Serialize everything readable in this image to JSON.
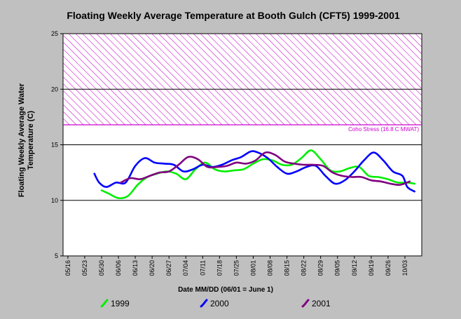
{
  "chart_data": {
    "type": "line",
    "title": "Floating Weekly Average Temperature at Booth Gulch (CFT5) 1999-2001",
    "xlabel": "Date MM/DD (06/01 = June 1)",
    "ylabel_line1": "Floating Weekly Average Water",
    "ylabel_line2": "Temperature (C)",
    "ylim": [
      5,
      25
    ],
    "yticks": [
      "5",
      "10",
      "15",
      "20",
      "25"
    ],
    "xticks": [
      "05/16",
      "05/23",
      "05/30",
      "06/06",
      "06/13",
      "06/20",
      "06/27",
      "07/04",
      "07/11",
      "07/18",
      "07/25",
      "08/01",
      "08/08",
      "08/15",
      "08/22",
      "08/29",
      "09/05",
      "09/12",
      "09/19",
      "09/26",
      "10/03"
    ],
    "grid": "horizontal at 10, 15, 20",
    "shaded_band": {
      "from": 16.8,
      "to": 25,
      "color": "#cc00cc",
      "label": "Coho Stress (16.8 C MWAT)"
    },
    "series": [
      {
        "name": "1999",
        "color": "#00ee00",
        "x": [
          "05/30",
          "06/02",
          "06/06",
          "06/10",
          "06/14",
          "06/18",
          "06/22",
          "06/26",
          "06/30",
          "07/04",
          "07/08",
          "07/12",
          "07/16",
          "07/20",
          "07/24",
          "07/28",
          "08/01",
          "08/05",
          "08/09",
          "08/13",
          "08/17",
          "08/21",
          "08/25",
          "08/29",
          "09/02",
          "09/06",
          "09/10",
          "09/14",
          "09/18",
          "09/22",
          "09/26",
          "09/30",
          "10/04",
          "10/07"
        ],
        "y": [
          10.9,
          10.6,
          10.2,
          10.4,
          11.4,
          12.1,
          12.4,
          12.6,
          12.4,
          11.9,
          12.8,
          13.4,
          12.8,
          12.6,
          12.7,
          12.8,
          13.3,
          13.7,
          13.6,
          13.2,
          13.2,
          13.8,
          14.5,
          13.7,
          12.7,
          12.6,
          12.9,
          13.0,
          12.2,
          12.1,
          11.9,
          11.6,
          11.6,
          11.5
        ]
      },
      {
        "name": "2000",
        "color": "#0000ff",
        "x": [
          "05/27",
          "05/29",
          "06/01",
          "06/05",
          "06/09",
          "06/13",
          "06/17",
          "06/21",
          "06/25",
          "06/29",
          "07/03",
          "07/07",
          "07/11",
          "07/15",
          "07/19",
          "07/23",
          "07/27",
          "07/31",
          "08/03",
          "08/07",
          "08/11",
          "08/15",
          "08/19",
          "08/23",
          "08/27",
          "08/31",
          "09/04",
          "09/08",
          "09/12",
          "09/16",
          "09/20",
          "09/24",
          "09/28",
          "10/02",
          "10/04",
          "10/07"
        ],
        "y": [
          12.4,
          11.6,
          11.2,
          11.6,
          11.6,
          13.1,
          13.8,
          13.4,
          13.3,
          13.2,
          12.6,
          12.8,
          13.2,
          13.0,
          13.2,
          13.6,
          13.9,
          14.4,
          14.3,
          13.8,
          13.0,
          12.4,
          12.6,
          13.0,
          13.1,
          12.2,
          11.5,
          11.8,
          12.6,
          13.6,
          14.3,
          13.6,
          12.6,
          12.2,
          11.2,
          10.8
        ]
      },
      {
        "name": "2001",
        "color": "#7f007f",
        "x": [
          "06/07",
          "06/11",
          "06/15",
          "06/19",
          "06/23",
          "06/27",
          "07/01",
          "07/05",
          "07/09",
          "07/13",
          "07/17",
          "07/21",
          "07/25",
          "07/29",
          "08/02",
          "08/06",
          "08/10",
          "08/14",
          "08/18",
          "08/22",
          "08/26",
          "08/30",
          "09/03",
          "09/07",
          "09/11",
          "09/15",
          "09/19",
          "09/23",
          "09/27",
          "10/01",
          "10/05"
        ],
        "y": [
          11.6,
          12.0,
          11.9,
          12.2,
          12.5,
          12.6,
          13.2,
          13.9,
          13.7,
          13.0,
          13.0,
          13.1,
          13.4,
          13.3,
          13.6,
          14.3,
          14.1,
          13.5,
          13.3,
          13.2,
          13.2,
          13.1,
          12.5,
          12.2,
          12.1,
          12.1,
          11.8,
          11.7,
          11.5,
          11.4,
          11.7
        ]
      }
    ]
  }
}
